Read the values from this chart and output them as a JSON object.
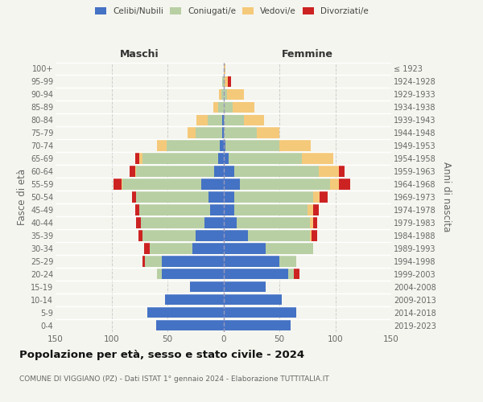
{
  "age_groups": [
    "0-4",
    "5-9",
    "10-14",
    "15-19",
    "20-24",
    "25-29",
    "30-34",
    "35-39",
    "40-44",
    "45-49",
    "50-54",
    "55-59",
    "60-64",
    "65-69",
    "70-74",
    "75-79",
    "80-84",
    "85-89",
    "90-94",
    "95-99",
    "100+"
  ],
  "birth_years": [
    "2019-2023",
    "2014-2018",
    "2009-2013",
    "2004-2008",
    "1999-2003",
    "1994-1998",
    "1989-1993",
    "1984-1988",
    "1979-1983",
    "1974-1978",
    "1969-1973",
    "1964-1968",
    "1959-1963",
    "1954-1958",
    "1949-1953",
    "1944-1948",
    "1939-1943",
    "1934-1938",
    "1929-1933",
    "1924-1928",
    "≤ 1923"
  ],
  "colors": {
    "celibi": "#4472c4",
    "coniugati": "#b8cfa4",
    "vedovi": "#f5c97a",
    "divorziati": "#cc2222",
    "background": "#f5f5ef",
    "grid": "#cccccc"
  },
  "maschi": {
    "celibi": [
      60,
      68,
      52,
      30,
      55,
      55,
      28,
      25,
      17,
      12,
      13,
      20,
      8,
      5,
      3,
      1,
      1,
      0,
      0,
      0,
      0
    ],
    "coniugati": [
      0,
      0,
      0,
      0,
      4,
      15,
      38,
      47,
      57,
      63,
      65,
      70,
      70,
      67,
      48,
      24,
      13,
      5,
      2,
      1,
      0
    ],
    "vedovi": [
      0,
      0,
      0,
      0,
      0,
      0,
      0,
      0,
      0,
      0,
      0,
      1,
      1,
      3,
      8,
      7,
      10,
      4,
      2,
      0,
      0
    ],
    "divorziati": [
      0,
      0,
      0,
      0,
      0,
      2,
      5,
      4,
      4,
      4,
      4,
      7,
      5,
      4,
      0,
      0,
      0,
      0,
      0,
      0,
      0
    ]
  },
  "femmine": {
    "celibi": [
      60,
      65,
      52,
      38,
      58,
      50,
      38,
      22,
      12,
      10,
      10,
      15,
      10,
      5,
      2,
      0,
      0,
      0,
      0,
      0,
      0
    ],
    "coniugati": [
      0,
      0,
      0,
      0,
      5,
      15,
      42,
      55,
      65,
      65,
      70,
      80,
      75,
      65,
      48,
      30,
      18,
      8,
      3,
      1,
      0
    ],
    "vedovi": [
      0,
      0,
      0,
      0,
      0,
      0,
      0,
      2,
      3,
      5,
      6,
      8,
      18,
      28,
      28,
      20,
      18,
      20,
      15,
      3,
      2
    ],
    "divorziati": [
      0,
      0,
      0,
      0,
      5,
      0,
      0,
      5,
      4,
      5,
      7,
      10,
      5,
      0,
      0,
      0,
      0,
      0,
      0,
      3,
      0
    ]
  },
  "xlim": 150,
  "title": "Popolazione per età, sesso e stato civile - 2024",
  "subtitle": "COMUNE DI VIGGIANO (PZ) - Dati ISTAT 1° gennaio 2024 - Elaborazione TUTTITALIA.IT",
  "ylabel_left": "Fasce di età",
  "ylabel_right": "Anni di nascita",
  "maschi_label": "Maschi",
  "femmine_label": "Femmine",
  "legend_labels": [
    "Celibi/Nubili",
    "Coniugati/e",
    "Vedovi/e",
    "Divorziati/e"
  ]
}
